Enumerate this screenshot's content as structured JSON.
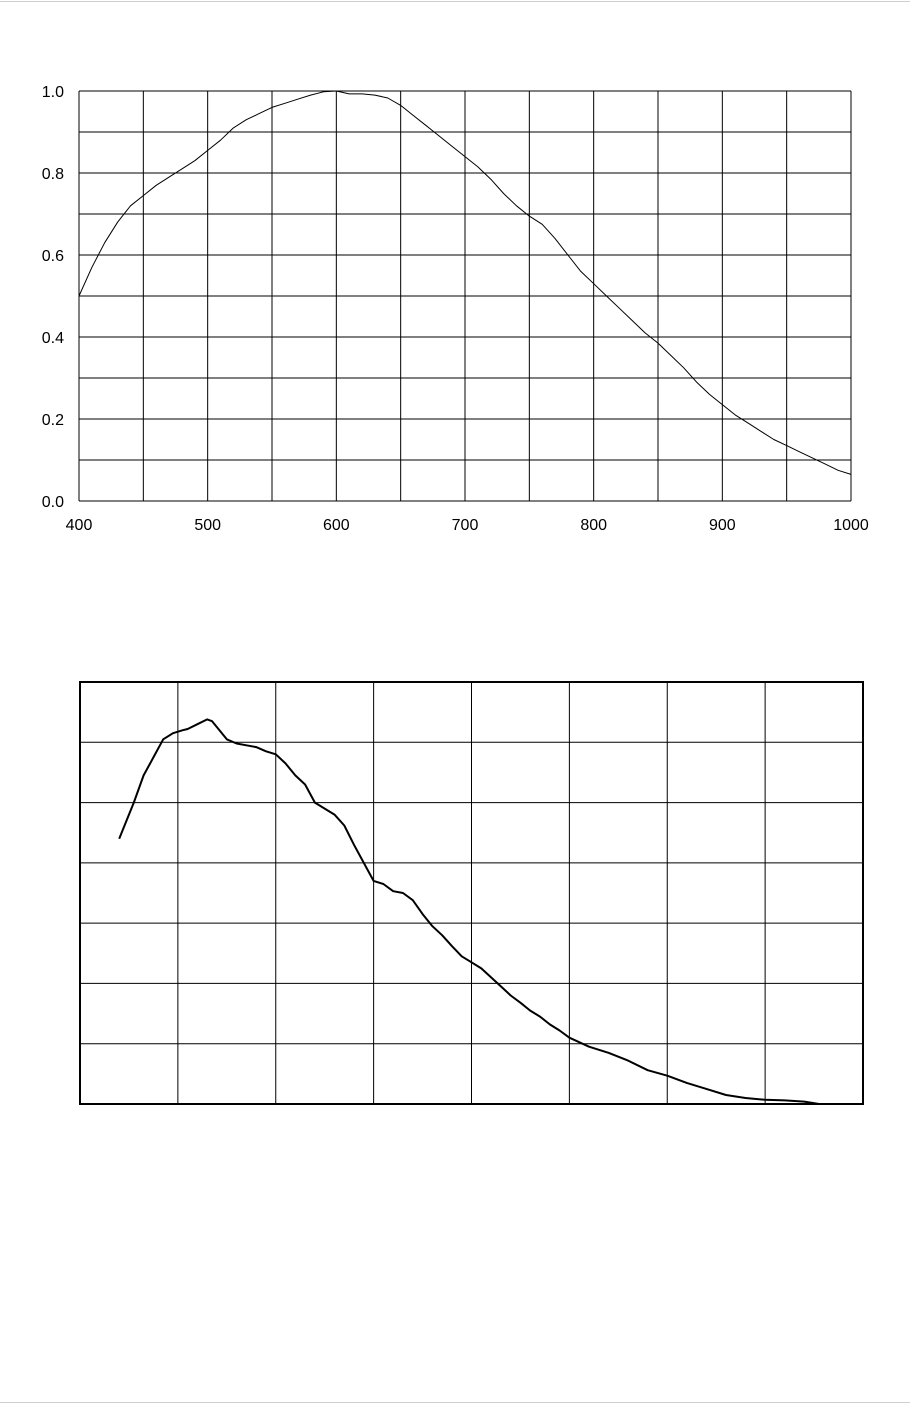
{
  "chart_data": [
    {
      "type": "line",
      "title": "",
      "xlabel": "",
      "ylabel": "",
      "xlim": [
        400,
        1000
      ],
      "ylim": [
        0.0,
        1.0
      ],
      "x_ticks": [
        400,
        500,
        600,
        700,
        800,
        900,
        1000
      ],
      "x_tick_labels": [
        "400",
        "500",
        "600",
        "700",
        "800",
        "900",
        "1000"
      ],
      "y_ticks": [
        0.0,
        0.2,
        0.4,
        0.6,
        0.8,
        1.0
      ],
      "y_tick_labels": [
        "0.0",
        "0.2",
        "0.4",
        "0.6",
        "0.8",
        "1.0"
      ],
      "x_grid_step": 50,
      "y_grid_step": 0.1,
      "grid": true,
      "series": [
        {
          "x": [
            400,
            410,
            420,
            430,
            440,
            450,
            460,
            470,
            480,
            490,
            500,
            510,
            520,
            530,
            540,
            550,
            560,
            570,
            580,
            590,
            600,
            610,
            620,
            630,
            640,
            650,
            660,
            670,
            680,
            690,
            700,
            710,
            720,
            730,
            740,
            750,
            760,
            770,
            780,
            790,
            800,
            810,
            820,
            830,
            840,
            850,
            860,
            870,
            880,
            890,
            900,
            910,
            920,
            930,
            940,
            950,
            960,
            970,
            980,
            990,
            1000
          ],
          "y": [
            0.5,
            0.57,
            0.63,
            0.68,
            0.72,
            0.745,
            0.77,
            0.79,
            0.81,
            0.83,
            0.855,
            0.88,
            0.91,
            0.93,
            0.945,
            0.96,
            0.97,
            0.98,
            0.99,
            0.998,
            1.0,
            0.993,
            0.993,
            0.99,
            0.983,
            0.965,
            0.94,
            0.915,
            0.89,
            0.865,
            0.84,
            0.815,
            0.785,
            0.75,
            0.72,
            0.695,
            0.675,
            0.64,
            0.6,
            0.56,
            0.53,
            0.5,
            0.47,
            0.44,
            0.41,
            0.385,
            0.355,
            0.325,
            0.29,
            0.26,
            0.235,
            0.21,
            0.19,
            0.17,
            0.15,
            0.135,
            0.12,
            0.105,
            0.09,
            0.075,
            0.065
          ]
        }
      ]
    },
    {
      "type": "line",
      "title": "",
      "xlabel": "",
      "ylabel": "",
      "x_tick_labels": [],
      "y_tick_labels": [],
      "grid": true,
      "grid_columns": 8,
      "grid_rows": 7,
      "xlim": [
        0,
        8
      ],
      "ylim": [
        0,
        7
      ],
      "series": [
        {
          "x": [
            0.4,
            0.55,
            0.65,
            0.75,
            0.85,
            0.95,
            1.05,
            1.1,
            1.2,
            1.3,
            1.35,
            1.4,
            1.5,
            1.6,
            1.7,
            1.8,
            1.9,
            2.0,
            2.1,
            2.2,
            2.3,
            2.4,
            2.5,
            2.6,
            2.7,
            2.8,
            2.9,
            3.0,
            3.1,
            3.2,
            3.3,
            3.4,
            3.5,
            3.6,
            3.7,
            3.8,
            3.9,
            4.0,
            4.1,
            4.2,
            4.3,
            4.4,
            4.5,
            4.6,
            4.7,
            4.8,
            4.9,
            5.0,
            5.2,
            5.4,
            5.6,
            5.8,
            6.0,
            6.2,
            6.4,
            6.6,
            6.8,
            7.0,
            7.2,
            7.4,
            7.55
          ],
          "y": [
            4.4,
            5.0,
            5.45,
            5.75,
            6.05,
            6.15,
            6.2,
            6.22,
            6.3,
            6.38,
            6.35,
            6.25,
            6.05,
            5.98,
            5.95,
            5.92,
            5.85,
            5.8,
            5.65,
            5.45,
            5.3,
            5.0,
            4.9,
            4.8,
            4.62,
            4.3,
            4.0,
            3.7,
            3.65,
            3.53,
            3.5,
            3.38,
            3.15,
            2.95,
            2.8,
            2.62,
            2.45,
            2.35,
            2.25,
            2.1,
            1.95,
            1.8,
            1.68,
            1.55,
            1.45,
            1.32,
            1.22,
            1.1,
            0.95,
            0.85,
            0.72,
            0.56,
            0.47,
            0.35,
            0.25,
            0.15,
            0.1,
            0.07,
            0.06,
            0.04,
            0.0
          ]
        }
      ]
    }
  ]
}
